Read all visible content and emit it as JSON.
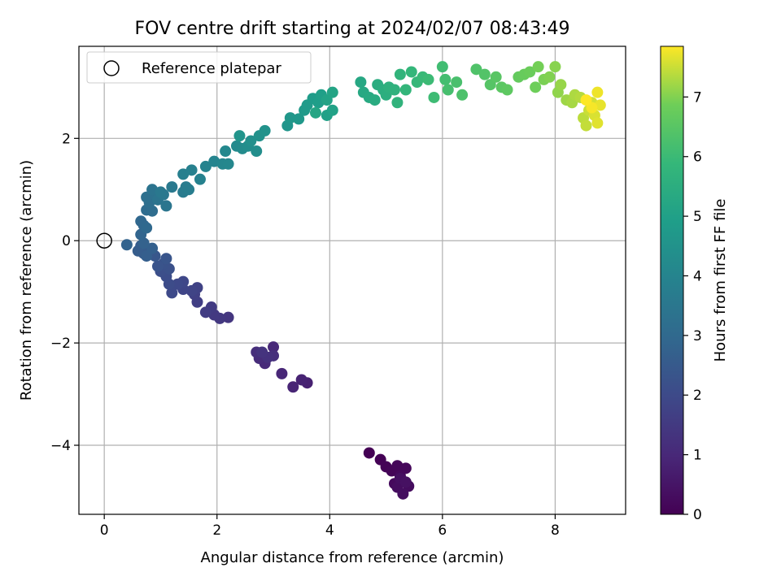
{
  "chart_data": {
    "type": "scatter",
    "title": "FOV centre drift starting at 2024/02/07 08:43:49",
    "xlabel": "Angular distance from reference (arcmin)",
    "ylabel": "Rotation from reference (arcmin)",
    "xlim": [
      -0.45,
      9.25
    ],
    "ylim": [
      -5.35,
      3.8
    ],
    "xticks": [
      0,
      2,
      4,
      6,
      8
    ],
    "yticks": [
      -4,
      -2,
      0,
      2
    ],
    "grid": true,
    "legend": {
      "position": "top-left",
      "entries": [
        "Reference platepar"
      ]
    },
    "reference_point": {
      "x": 0,
      "y": 0,
      "label": "Reference platepar"
    },
    "colorbar": {
      "label": "Hours from first FF file",
      "colormap": "viridis",
      "range": [
        0,
        7.85
      ],
      "ticks": [
        0,
        1,
        2,
        3,
        4,
        5,
        6,
        7
      ]
    },
    "points": [
      {
        "x": 4.7,
        "y": -4.15,
        "c": 0.0
      },
      {
        "x": 4.9,
        "y": -4.28,
        "c": 0.03
      },
      {
        "x": 5.0,
        "y": -4.42,
        "c": 0.06
      },
      {
        "x": 5.1,
        "y": -4.5,
        "c": 0.09
      },
      {
        "x": 5.2,
        "y": -4.4,
        "c": 0.12
      },
      {
        "x": 5.35,
        "y": -4.45,
        "c": 0.15
      },
      {
        "x": 5.25,
        "y": -4.6,
        "c": 0.18
      },
      {
        "x": 5.15,
        "y": -4.75,
        "c": 0.21
      },
      {
        "x": 5.3,
        "y": -4.7,
        "c": 0.24
      },
      {
        "x": 5.4,
        "y": -4.8,
        "c": 0.27
      },
      {
        "x": 5.2,
        "y": -4.82,
        "c": 0.3
      },
      {
        "x": 5.3,
        "y": -4.95,
        "c": 0.33
      },
      {
        "x": 5.25,
        "y": -4.65,
        "c": 0.36
      },
      {
        "x": 5.35,
        "y": -4.72,
        "c": 0.39
      },
      {
        "x": 3.6,
        "y": -2.78,
        "c": 0.8
      },
      {
        "x": 3.5,
        "y": -2.72,
        "c": 0.85
      },
      {
        "x": 3.35,
        "y": -2.86,
        "c": 0.9
      },
      {
        "x": 3.15,
        "y": -2.6,
        "c": 0.95
      },
      {
        "x": 3.0,
        "y": -2.08,
        "c": 1.0
      },
      {
        "x": 2.85,
        "y": -2.4,
        "c": 1.05
      },
      {
        "x": 2.75,
        "y": -2.3,
        "c": 1.1
      },
      {
        "x": 2.7,
        "y": -2.18,
        "c": 1.15
      },
      {
        "x": 3.0,
        "y": -2.25,
        "c": 1.2
      },
      {
        "x": 2.9,
        "y": -2.28,
        "c": 1.25
      },
      {
        "x": 2.8,
        "y": -2.18,
        "c": 1.3
      },
      {
        "x": 2.2,
        "y": -1.5,
        "c": 1.4
      },
      {
        "x": 2.05,
        "y": -1.52,
        "c": 1.45
      },
      {
        "x": 1.95,
        "y": -1.45,
        "c": 1.5
      },
      {
        "x": 1.9,
        "y": -1.3,
        "c": 1.55
      },
      {
        "x": 1.8,
        "y": -1.4,
        "c": 1.6
      },
      {
        "x": 1.65,
        "y": -1.2,
        "c": 1.65
      },
      {
        "x": 1.6,
        "y": -1.05,
        "c": 1.7
      },
      {
        "x": 1.65,
        "y": -0.92,
        "c": 1.75
      },
      {
        "x": 1.55,
        "y": -0.98,
        "c": 1.8
      },
      {
        "x": 1.4,
        "y": -0.95,
        "c": 1.85
      },
      {
        "x": 1.4,
        "y": -0.8,
        "c": 1.9
      },
      {
        "x": 1.3,
        "y": -0.85,
        "c": 1.95
      },
      {
        "x": 1.2,
        "y": -1.02,
        "c": 2.0
      },
      {
        "x": 1.15,
        "y": -0.85,
        "c": 2.05
      },
      {
        "x": 1.1,
        "y": -0.7,
        "c": 2.1
      },
      {
        "x": 1.0,
        "y": -0.6,
        "c": 2.15
      },
      {
        "x": 1.15,
        "y": -0.55,
        "c": 2.2
      },
      {
        "x": 1.05,
        "y": -0.45,
        "c": 2.25
      },
      {
        "x": 0.95,
        "y": -0.5,
        "c": 2.3
      },
      {
        "x": 1.1,
        "y": -0.35,
        "c": 2.35
      },
      {
        "x": 0.9,
        "y": -0.3,
        "c": 2.4
      },
      {
        "x": 0.8,
        "y": -0.2,
        "c": 2.45
      },
      {
        "x": 0.7,
        "y": -0.25,
        "c": 2.5
      },
      {
        "x": 0.65,
        "y": -0.1,
        "c": 2.55
      },
      {
        "x": 0.6,
        "y": -0.2,
        "c": 2.6
      },
      {
        "x": 0.75,
        "y": -0.3,
        "c": 2.65
      },
      {
        "x": 0.85,
        "y": -0.15,
        "c": 2.7
      },
      {
        "x": 0.7,
        "y": -0.05,
        "c": 2.75
      },
      {
        "x": 0.4,
        "y": -0.08,
        "c": 2.8
      },
      {
        "x": 0.65,
        "y": 0.12,
        "c": 2.85
      },
      {
        "x": 0.7,
        "y": 0.3,
        "c": 2.9
      },
      {
        "x": 0.65,
        "y": 0.38,
        "c": 2.95
      },
      {
        "x": 0.75,
        "y": 0.25,
        "c": 3.0
      },
      {
        "x": 0.75,
        "y": 0.6,
        "c": 3.1
      },
      {
        "x": 0.85,
        "y": 0.58,
        "c": 3.15
      },
      {
        "x": 0.8,
        "y": 0.75,
        "c": 3.2
      },
      {
        "x": 0.75,
        "y": 0.85,
        "c": 3.25
      },
      {
        "x": 0.9,
        "y": 0.9,
        "c": 3.3
      },
      {
        "x": 0.85,
        "y": 1.0,
        "c": 3.35
      },
      {
        "x": 0.95,
        "y": 0.8,
        "c": 3.4
      },
      {
        "x": 1.1,
        "y": 0.68,
        "c": 3.45
      },
      {
        "x": 1.05,
        "y": 0.9,
        "c": 3.5
      },
      {
        "x": 1.0,
        "y": 0.95,
        "c": 3.55
      },
      {
        "x": 1.2,
        "y": 1.05,
        "c": 3.6
      },
      {
        "x": 1.4,
        "y": 0.95,
        "c": 3.65
      },
      {
        "x": 1.45,
        "y": 1.05,
        "c": 3.7
      },
      {
        "x": 1.5,
        "y": 1.0,
        "c": 3.75
      },
      {
        "x": 1.4,
        "y": 1.3,
        "c": 3.8
      },
      {
        "x": 1.55,
        "y": 1.38,
        "c": 3.85
      },
      {
        "x": 1.7,
        "y": 1.2,
        "c": 3.9
      },
      {
        "x": 1.8,
        "y": 1.45,
        "c": 3.95
      },
      {
        "x": 1.95,
        "y": 1.55,
        "c": 4.0
      },
      {
        "x": 2.1,
        "y": 1.5,
        "c": 4.05
      },
      {
        "x": 2.2,
        "y": 1.5,
        "c": 4.1
      },
      {
        "x": 2.15,
        "y": 1.75,
        "c": 4.15
      },
      {
        "x": 2.35,
        "y": 1.85,
        "c": 4.2
      },
      {
        "x": 2.45,
        "y": 1.8,
        "c": 4.25
      },
      {
        "x": 2.55,
        "y": 1.85,
        "c": 4.3
      },
      {
        "x": 2.7,
        "y": 1.75,
        "c": 4.35
      },
      {
        "x": 2.6,
        "y": 1.95,
        "c": 4.4
      },
      {
        "x": 2.75,
        "y": 2.05,
        "c": 4.45
      },
      {
        "x": 2.85,
        "y": 2.15,
        "c": 4.5
      },
      {
        "x": 2.4,
        "y": 2.05,
        "c": 4.55
      },
      {
        "x": 3.25,
        "y": 2.25,
        "c": 4.6
      },
      {
        "x": 3.3,
        "y": 2.4,
        "c": 4.65
      },
      {
        "x": 3.45,
        "y": 2.38,
        "c": 4.7
      },
      {
        "x": 3.55,
        "y": 2.55,
        "c": 4.75
      },
      {
        "x": 3.6,
        "y": 2.65,
        "c": 4.8
      },
      {
        "x": 3.7,
        "y": 2.78,
        "c": 4.85
      },
      {
        "x": 3.8,
        "y": 2.7,
        "c": 4.9
      },
      {
        "x": 3.85,
        "y": 2.85,
        "c": 4.95
      },
      {
        "x": 3.95,
        "y": 2.45,
        "c": 5.0
      },
      {
        "x": 4.05,
        "y": 2.55,
        "c": 5.05
      },
      {
        "x": 3.95,
        "y": 2.75,
        "c": 5.1
      },
      {
        "x": 4.05,
        "y": 2.9,
        "c": 5.15
      },
      {
        "x": 3.75,
        "y": 2.5,
        "c": 5.2
      },
      {
        "x": 4.55,
        "y": 3.1,
        "c": 5.25
      },
      {
        "x": 4.6,
        "y": 2.9,
        "c": 5.3
      },
      {
        "x": 4.7,
        "y": 2.8,
        "c": 5.35
      },
      {
        "x": 4.8,
        "y": 2.75,
        "c": 5.4
      },
      {
        "x": 4.85,
        "y": 3.05,
        "c": 5.45
      },
      {
        "x": 4.95,
        "y": 2.95,
        "c": 5.5
      },
      {
        "x": 5.0,
        "y": 2.85,
        "c": 5.55
      },
      {
        "x": 5.05,
        "y": 3.0,
        "c": 5.6
      },
      {
        "x": 5.15,
        "y": 2.95,
        "c": 5.65
      },
      {
        "x": 5.2,
        "y": 2.7,
        "c": 5.7
      },
      {
        "x": 5.25,
        "y": 3.25,
        "c": 5.75
      },
      {
        "x": 5.35,
        "y": 2.95,
        "c": 5.8
      },
      {
        "x": 5.45,
        "y": 3.3,
        "c": 5.85
      },
      {
        "x": 5.55,
        "y": 3.1,
        "c": 5.9
      },
      {
        "x": 5.65,
        "y": 3.2,
        "c": 5.95
      },
      {
        "x": 5.75,
        "y": 3.15,
        "c": 6.0
      },
      {
        "x": 5.85,
        "y": 2.8,
        "c": 6.05
      },
      {
        "x": 6.0,
        "y": 3.4,
        "c": 6.1
      },
      {
        "x": 6.05,
        "y": 3.15,
        "c": 6.15
      },
      {
        "x": 6.1,
        "y": 2.95,
        "c": 6.2
      },
      {
        "x": 6.25,
        "y": 3.1,
        "c": 6.25
      },
      {
        "x": 6.35,
        "y": 2.85,
        "c": 6.3
      },
      {
        "x": 6.6,
        "y": 3.35,
        "c": 6.35
      },
      {
        "x": 6.75,
        "y": 3.25,
        "c": 6.4
      },
      {
        "x": 6.85,
        "y": 3.05,
        "c": 6.45
      },
      {
        "x": 6.95,
        "y": 3.2,
        "c": 6.5
      },
      {
        "x": 7.05,
        "y": 3.0,
        "c": 6.55
      },
      {
        "x": 7.15,
        "y": 2.95,
        "c": 6.6
      },
      {
        "x": 7.35,
        "y": 3.2,
        "c": 6.7
      },
      {
        "x": 7.45,
        "y": 3.25,
        "c": 6.75
      },
      {
        "x": 7.55,
        "y": 3.3,
        "c": 6.8
      },
      {
        "x": 7.65,
        "y": 3.0,
        "c": 6.85
      },
      {
        "x": 7.7,
        "y": 3.4,
        "c": 6.9
      },
      {
        "x": 7.8,
        "y": 3.15,
        "c": 6.95
      },
      {
        "x": 7.9,
        "y": 3.2,
        "c": 7.0
      },
      {
        "x": 8.0,
        "y": 3.4,
        "c": 7.05
      },
      {
        "x": 8.05,
        "y": 2.9,
        "c": 7.1
      },
      {
        "x": 8.1,
        "y": 3.05,
        "c": 7.15
      },
      {
        "x": 8.2,
        "y": 2.75,
        "c": 7.2
      },
      {
        "x": 8.3,
        "y": 2.7,
        "c": 7.25
      },
      {
        "x": 8.35,
        "y": 2.85,
        "c": 7.3
      },
      {
        "x": 8.45,
        "y": 2.8,
        "c": 7.35
      },
      {
        "x": 8.5,
        "y": 2.4,
        "c": 7.4
      },
      {
        "x": 8.55,
        "y": 2.25,
        "c": 7.45
      },
      {
        "x": 8.6,
        "y": 2.55,
        "c": 7.5
      },
      {
        "x": 8.65,
        "y": 2.7,
        "c": 7.55
      },
      {
        "x": 8.7,
        "y": 2.45,
        "c": 7.6
      },
      {
        "x": 8.75,
        "y": 2.3,
        "c": 7.65
      },
      {
        "x": 8.8,
        "y": 2.65,
        "c": 7.7
      },
      {
        "x": 8.75,
        "y": 2.9,
        "c": 7.75
      },
      {
        "x": 8.65,
        "y": 2.6,
        "c": 7.8
      },
      {
        "x": 8.55,
        "y": 2.75,
        "c": 7.85
      }
    ]
  }
}
